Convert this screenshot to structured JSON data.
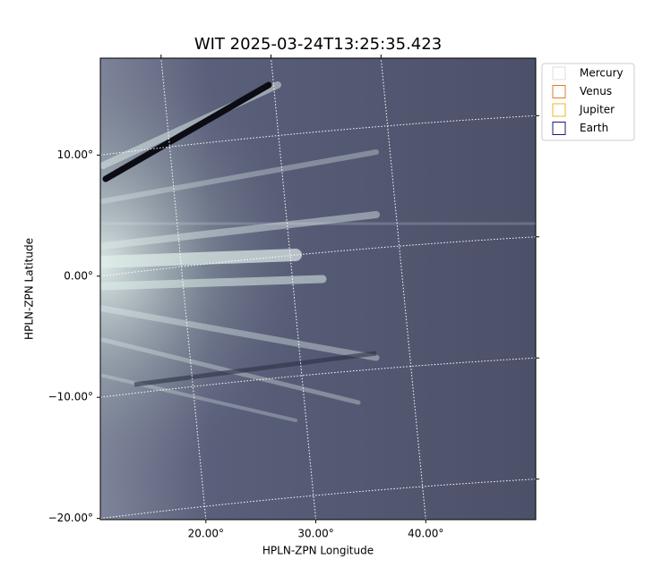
{
  "chart_data": {
    "type": "image",
    "title": "WIT 2025-03-24T13:25:35.423",
    "xlabel": "HPLN-ZPN Longitude",
    "ylabel": "HPLN-ZPN Latitude",
    "xlim": [
      10.4,
      50.0
    ],
    "ylim": [
      -20.1,
      18.0
    ],
    "xticks": [
      {
        "value": 20,
        "label": "20.00°"
      },
      {
        "value": 30,
        "label": "30.00°"
      },
      {
        "value": 40,
        "label": "40.00°"
      }
    ],
    "yticks": [
      {
        "value": -20,
        "label": "−20.00°"
      },
      {
        "value": -10,
        "label": "−10.00°"
      },
      {
        "value": 0,
        "label": "0.00°"
      },
      {
        "value": 10,
        "label": "10.00°"
      }
    ],
    "grid": true,
    "legend_position": "outside-upper-right",
    "series": [
      {
        "name": "Mercury",
        "color": "#dddddd"
      },
      {
        "name": "Venus",
        "color": "#e07b2a"
      },
      {
        "name": "Jupiter",
        "color": "#e8b820"
      },
      {
        "name": "Earth",
        "color": "#1a1a6e"
      }
    ]
  }
}
